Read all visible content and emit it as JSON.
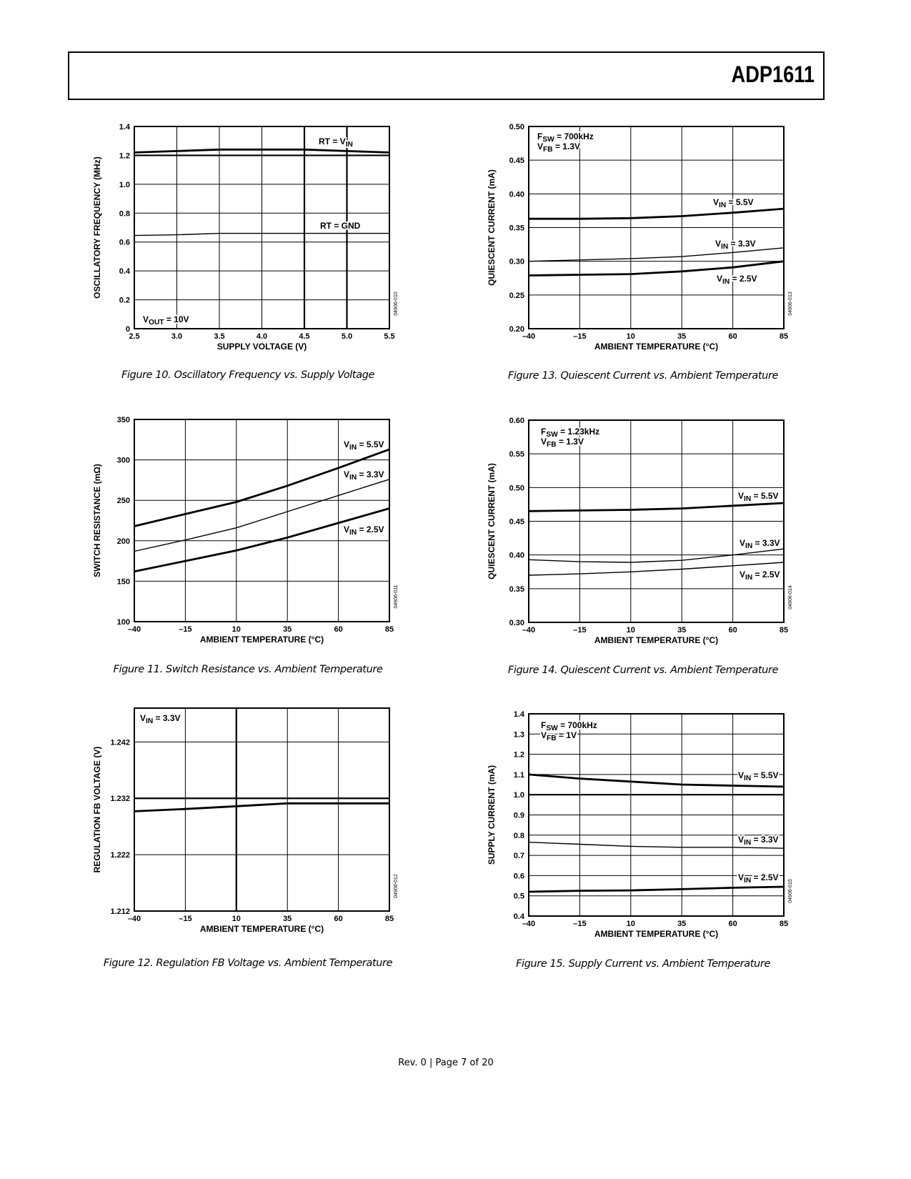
{
  "header": {
    "title": "ADP1611"
  },
  "footer": {
    "text": "Rev. 0 | Page 7 of 20"
  },
  "chart_data": [
    {
      "type": "line",
      "caption": "Figure 10. Oscillatory Frequency vs. Supply Voltage",
      "xlabel": "SUPPLY VOLTAGE (V)",
      "ylabel": "OSCILLATORY FREQUENCY (MHz)",
      "xlim": [
        2.5,
        5.5
      ],
      "ylim": [
        0,
        1.4
      ],
      "xticks": [
        "2.5",
        "3.0",
        "3.5",
        "4.0",
        "4.5",
        "5.0",
        "5.5"
      ],
      "yticks": [
        "0",
        "0.2",
        "0.4",
        "0.6",
        "0.8",
        "1.0",
        "1.2",
        "1.4"
      ],
      "x": [
        2.5,
        3.0,
        3.5,
        4.0,
        4.5,
        5.0,
        5.5
      ],
      "series": [
        {
          "name": "RT = VIN",
          "label": {
            "base": "RT = V",
            "sub": "IN",
            "rest": ""
          },
          "values": [
            1.22,
            1.23,
            1.24,
            1.24,
            1.24,
            1.23,
            1.22
          ],
          "weight": "heavy"
        },
        {
          "name": "RT = GND",
          "label": {
            "base": "RT = GND",
            "sub": "",
            "rest": ""
          },
          "values": [
            0.645,
            0.65,
            0.66,
            0.66,
            0.66,
            0.66,
            0.66
          ],
          "weight": "light"
        }
      ],
      "notes": [
        {
          "base": "V",
          "sub": "OUT",
          "rest": " = 10V"
        }
      ],
      "code": "04906-010",
      "grid": true
    },
    {
      "type": "line",
      "caption": "Figure 11. Switch Resistance vs. Ambient Temperature",
      "xlabel": "AMBIENT TEMPERATURE (°C)",
      "ylabel": "SWITCH RESISTANCE (mΩ)",
      "xlim": [
        -40,
        85
      ],
      "ylim": [
        100,
        350
      ],
      "xticks": [
        "–40",
        "–15",
        "10",
        "35",
        "60",
        "85"
      ],
      "yticks": [
        "100",
        "150",
        "200",
        "250",
        "300",
        "350"
      ],
      "x": [
        -40,
        -15,
        10,
        35,
        60,
        85
      ],
      "series": [
        {
          "name": "VIN = 5.5V",
          "label": {
            "base": "V",
            "sub": "IN",
            "rest": " = 5.5V"
          },
          "values": [
            218,
            233,
            248,
            268,
            290,
            313
          ],
          "weight": "heavy"
        },
        {
          "name": "VIN = 3.3V",
          "label": {
            "base": "V",
            "sub": "IN",
            "rest": " = 3.3V"
          },
          "values": [
            187,
            201,
            216,
            236,
            256,
            276
          ],
          "weight": "light"
        },
        {
          "name": "VIN = 2.5V",
          "label": {
            "base": "V",
            "sub": "IN",
            "rest": " = 2.5V"
          },
          "values": [
            162,
            175,
            188,
            204,
            222,
            240
          ],
          "weight": "heavy"
        }
      ],
      "notes": [],
      "code": "04906-011",
      "grid": true
    },
    {
      "type": "line",
      "caption": "Figure 12. Regulation FB Voltage vs. Ambient Temperature",
      "xlabel": "AMBIENT TEMPERATURE (°C)",
      "ylabel": "REGULATION FB VOLTAGE (V)",
      "xlim": [
        -40,
        85
      ],
      "ylim": [
        1.212,
        1.248
      ],
      "xticks": [
        "–40",
        "–15",
        "10",
        "35",
        "60",
        "85"
      ],
      "yticks": [
        "1.212",
        "1.222",
        "1.232",
        "1.242"
      ],
      "x": [
        -40,
        -15,
        10,
        35,
        60,
        85
      ],
      "series": [
        {
          "name": "VIN = 3.3V",
          "label": null,
          "values": [
            1.2297,
            1.2301,
            1.2306,
            1.2311,
            1.2311,
            1.2311
          ],
          "weight": "heavy"
        }
      ],
      "notes": [
        {
          "base": "V",
          "sub": "IN",
          "rest": " = 3.3V"
        }
      ],
      "code": "04906-012",
      "grid": true
    },
    {
      "type": "line",
      "caption": "Figure 13. Quiescent Current vs. Ambient Temperature",
      "xlabel": "AMBIENT TEMPERATURE (°C)",
      "ylabel": "QUIESCENT CURRENT (mA)",
      "xlim": [
        -40,
        85
      ],
      "ylim": [
        0.2,
        0.5
      ],
      "xticks": [
        "–40",
        "–15",
        "10",
        "35",
        "60",
        "85"
      ],
      "yticks": [
        "0.20",
        "0.25",
        "0.30",
        "0.35",
        "0.40",
        "0.45",
        "0.50"
      ],
      "x": [
        -40,
        -15,
        10,
        35,
        60,
        85
      ],
      "series": [
        {
          "name": "VIN = 5.5V",
          "label": {
            "base": "V",
            "sub": "IN",
            "rest": " = 5.5V"
          },
          "values": [
            0.363,
            0.363,
            0.364,
            0.367,
            0.372,
            0.378
          ],
          "weight": "heavy"
        },
        {
          "name": "VIN = 3.3V",
          "label": {
            "base": "V",
            "sub": "IN",
            "rest": " = 3.3V"
          },
          "values": [
            0.3,
            0.302,
            0.304,
            0.307,
            0.313,
            0.32
          ],
          "weight": "light"
        },
        {
          "name": "VIN = 2.5V",
          "label": {
            "base": "V",
            "sub": "IN",
            "rest": " = 2.5V"
          },
          "values": [
            0.279,
            0.28,
            0.281,
            0.285,
            0.291,
            0.3
          ],
          "weight": "heavy"
        }
      ],
      "notes": [
        {
          "base": "F",
          "sub": "SW",
          "rest": " = 700kHz"
        },
        {
          "base": "V",
          "sub": "FB",
          "rest": " = 1.3V"
        }
      ],
      "code": "04906-013",
      "grid": true
    },
    {
      "type": "line",
      "caption": "Figure 14. Quiescent Current vs. Ambient Temperature",
      "xlabel": "AMBIENT TEMPERATURE (°C)",
      "ylabel": "QUIESCENT CURRENT (mA)",
      "xlim": [
        -40,
        85
      ],
      "ylim": [
        0.3,
        0.6
      ],
      "xticks": [
        "–40",
        "–15",
        "10",
        "35",
        "60",
        "85"
      ],
      "yticks": [
        "0.30",
        "0.35",
        "0.40",
        "0.45",
        "0.50",
        "0.55",
        "0.60"
      ],
      "x": [
        -40,
        -15,
        10,
        35,
        60,
        85
      ],
      "series": [
        {
          "name": "VIN = 5.5V",
          "label": {
            "base": "V",
            "sub": "IN",
            "rest": " = 5.5V"
          },
          "values": [
            0.465,
            0.466,
            0.467,
            0.469,
            0.473,
            0.477
          ],
          "weight": "heavy"
        },
        {
          "name": "VIN = 3.3V",
          "label": {
            "base": "V",
            "sub": "IN",
            "rest": " = 3.3V"
          },
          "values": [
            0.393,
            0.39,
            0.389,
            0.392,
            0.4,
            0.409
          ],
          "weight": "light"
        },
        {
          "name": "VIN = 2.5V",
          "label": {
            "base": "V",
            "sub": "IN",
            "rest": " = 2.5V"
          },
          "values": [
            0.37,
            0.372,
            0.375,
            0.379,
            0.384,
            0.389
          ],
          "weight": "light"
        }
      ],
      "notes": [
        {
          "base": "F",
          "sub": "SW",
          "rest": " = 1.23kHz"
        },
        {
          "base": "V",
          "sub": "FB",
          "rest": " = 1.3V"
        }
      ],
      "code": "04906-014",
      "grid": true
    },
    {
      "type": "line",
      "caption": "Figure 15. Supply Current vs. Ambient Temperature",
      "xlabel": "AMBIENT TEMPERATURE (°C)",
      "ylabel": "SUPPLY CURRENT (mA)",
      "xlim": [
        -40,
        85
      ],
      "ylim": [
        0.4,
        1.4
      ],
      "xticks": [
        "–40",
        "–15",
        "10",
        "35",
        "60",
        "85"
      ],
      "yticks": [
        "0.4",
        "0.5",
        "0.6",
        "0.7",
        "0.8",
        "0.9",
        "1.0",
        "1.1",
        "1.2",
        "1.3",
        "1.4"
      ],
      "x": [
        -40,
        -15,
        10,
        35,
        60,
        85
      ],
      "series": [
        {
          "name": "VIN = 5.5V",
          "label": {
            "base": "V",
            "sub": "IN",
            "rest": " = 5.5V"
          },
          "values": [
            1.1,
            1.08,
            1.065,
            1.05,
            1.045,
            1.04
          ],
          "weight": "heavy"
        },
        {
          "name": "VIN = 3.3V",
          "label": {
            "base": "V",
            "sub": "IN",
            "rest": " = 3.3V"
          },
          "values": [
            0.765,
            0.755,
            0.745,
            0.74,
            0.74,
            0.735
          ],
          "weight": "light"
        },
        {
          "name": "VIN = 2.5V",
          "label": {
            "base": "V",
            "sub": "IN",
            "rest": " = 2.5V"
          },
          "values": [
            0.52,
            0.525,
            0.527,
            0.533,
            0.54,
            0.545
          ],
          "weight": "heavy"
        }
      ],
      "notes": [
        {
          "base": "F",
          "sub": "SW",
          "rest": " = 700kHz"
        },
        {
          "base": "V",
          "sub": "FB",
          "rest": " = 1V"
        }
      ],
      "code": "04906-015",
      "grid": true
    }
  ]
}
